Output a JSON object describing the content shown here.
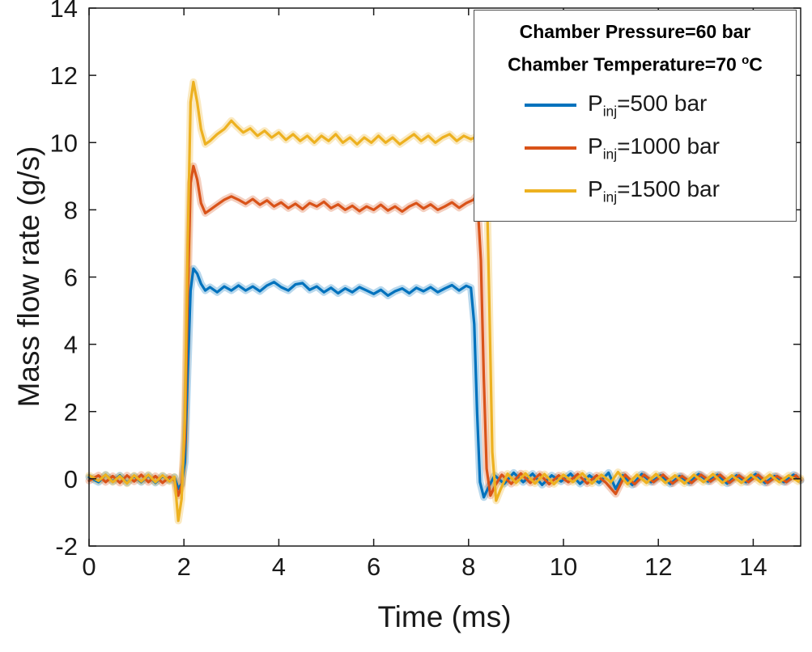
{
  "figure": {
    "xlabel": "Time (ms)",
    "ylabel": "Mass flow rate (g/s)"
  },
  "legend": {
    "header1": "Chamber Pressure=60 bar",
    "header2": {
      "pre": "Chamber Temperature=70 ",
      "sup": "o",
      "post": "C"
    },
    "entries": [
      {
        "pre": "P",
        "sub": "inj",
        "post": "=500 bar",
        "color": "#0072BD"
      },
      {
        "pre": "P",
        "sub": "inj",
        "post": "=1000 bar",
        "color": "#D95319"
      },
      {
        "pre": "P",
        "sub": "inj",
        "post": "=1500 bar",
        "color": "#EDB120"
      }
    ]
  },
  "chart_data": {
    "type": "line",
    "title": "",
    "xlabel": "Time (ms)",
    "ylabel": "Mass flow rate (g/s)",
    "xlim": [
      0,
      15
    ],
    "ylim": [
      -2,
      14
    ],
    "xticks": [
      0,
      2,
      4,
      6,
      8,
      10,
      12,
      14
    ],
    "yticks": [
      -2,
      0,
      2,
      4,
      6,
      8,
      10,
      12,
      14
    ],
    "grid": false,
    "legend_position": "top-right",
    "annotations": [
      "Chamber Pressure=60 bar",
      "Chamber Temperature=70 °C"
    ],
    "series": [
      {
        "name": "P_inj=500 bar",
        "color": "#0072BD",
        "plateau_g_s": 5.7,
        "peak_g_s": 6.25,
        "injection_start_ms": 2.0,
        "injection_end_ms": 8.2,
        "uncertainty_band_halfwidth": 0.18,
        "points": [
          [
            0,
            0.05
          ],
          [
            0.2,
            -0.1
          ],
          [
            0.35,
            0.12
          ],
          [
            0.5,
            -0.08
          ],
          [
            0.65,
            0.1
          ],
          [
            0.8,
            -0.12
          ],
          [
            0.95,
            0.08
          ],
          [
            1.1,
            -0.1
          ],
          [
            1.25,
            0.1
          ],
          [
            1.4,
            -0.12
          ],
          [
            1.55,
            0.08
          ],
          [
            1.7,
            -0.05
          ],
          [
            1.8,
            0.05
          ],
          [
            1.88,
            -0.3
          ],
          [
            1.95,
            -0.15
          ],
          [
            2.02,
            0.5
          ],
          [
            2.08,
            3.2
          ],
          [
            2.14,
            5.6
          ],
          [
            2.2,
            6.25
          ],
          [
            2.28,
            6.1
          ],
          [
            2.36,
            5.8
          ],
          [
            2.45,
            5.6
          ],
          [
            2.55,
            5.7
          ],
          [
            2.7,
            5.55
          ],
          [
            2.85,
            5.72
          ],
          [
            3.0,
            5.6
          ],
          [
            3.15,
            5.75
          ],
          [
            3.3,
            5.6
          ],
          [
            3.45,
            5.72
          ],
          [
            3.6,
            5.58
          ],
          [
            3.75,
            5.75
          ],
          [
            3.9,
            5.85
          ],
          [
            4.05,
            5.7
          ],
          [
            4.2,
            5.6
          ],
          [
            4.35,
            5.78
          ],
          [
            4.5,
            5.82
          ],
          [
            4.65,
            5.62
          ],
          [
            4.8,
            5.72
          ],
          [
            4.95,
            5.55
          ],
          [
            5.1,
            5.68
          ],
          [
            5.25,
            5.52
          ],
          [
            5.4,
            5.66
          ],
          [
            5.55,
            5.55
          ],
          [
            5.7,
            5.7
          ],
          [
            5.85,
            5.6
          ],
          [
            6.0,
            5.5
          ],
          [
            6.15,
            5.62
          ],
          [
            6.3,
            5.45
          ],
          [
            6.45,
            5.58
          ],
          [
            6.6,
            5.66
          ],
          [
            6.75,
            5.52
          ],
          [
            6.9,
            5.68
          ],
          [
            7.05,
            5.58
          ],
          [
            7.2,
            5.7
          ],
          [
            7.35,
            5.55
          ],
          [
            7.5,
            5.66
          ],
          [
            7.65,
            5.76
          ],
          [
            7.8,
            5.6
          ],
          [
            7.95,
            5.74
          ],
          [
            8.05,
            5.68
          ],
          [
            8.12,
            4.6
          ],
          [
            8.18,
            2.0
          ],
          [
            8.24,
            -0.1
          ],
          [
            8.32,
            -0.55
          ],
          [
            8.42,
            -0.25
          ],
          [
            8.55,
            0.1
          ],
          [
            8.75,
            -0.15
          ],
          [
            8.95,
            0.18
          ],
          [
            9.15,
            -0.1
          ],
          [
            9.35,
            0.15
          ],
          [
            9.55,
            -0.18
          ],
          [
            9.75,
            0.1
          ],
          [
            9.95,
            -0.08
          ],
          [
            10.15,
            0.15
          ],
          [
            10.35,
            -0.15
          ],
          [
            10.55,
            0.1
          ],
          [
            10.75,
            -0.12
          ],
          [
            10.95,
            0.18
          ],
          [
            11.1,
            -0.3
          ],
          [
            11.25,
            0.1
          ],
          [
            11.45,
            -0.18
          ],
          [
            11.65,
            0.14
          ],
          [
            11.85,
            -0.1
          ],
          [
            12.05,
            0.1
          ],
          [
            12.25,
            -0.15
          ],
          [
            12.45,
            0.08
          ],
          [
            12.65,
            -0.12
          ],
          [
            12.85,
            0.14
          ],
          [
            13.05,
            -0.08
          ],
          [
            13.25,
            0.12
          ],
          [
            13.45,
            -0.14
          ],
          [
            13.65,
            0.1
          ],
          [
            13.85,
            -0.1
          ],
          [
            14.05,
            0.14
          ],
          [
            14.25,
            -0.12
          ],
          [
            14.45,
            0.08
          ],
          [
            14.65,
            -0.1
          ],
          [
            14.85,
            0.12
          ],
          [
            15.0,
            -0.05
          ]
        ]
      },
      {
        "name": "P_inj=1000 bar",
        "color": "#D95319",
        "plateau_g_s": 8.1,
        "peak_g_s": 9.3,
        "injection_start_ms": 2.0,
        "injection_end_ms": 8.3,
        "uncertainty_band_halfwidth": 0.18,
        "points": [
          [
            0,
            -0.06
          ],
          [
            0.2,
            0.1
          ],
          [
            0.35,
            -0.1
          ],
          [
            0.5,
            0.08
          ],
          [
            0.65,
            -0.12
          ],
          [
            0.8,
            0.1
          ],
          [
            0.95,
            -0.08
          ],
          [
            1.1,
            0.12
          ],
          [
            1.25,
            -0.1
          ],
          [
            1.4,
            0.08
          ],
          [
            1.55,
            -0.12
          ],
          [
            1.7,
            0.06
          ],
          [
            1.8,
            -0.05
          ],
          [
            1.88,
            -0.5
          ],
          [
            1.95,
            -0.2
          ],
          [
            2.02,
            1.2
          ],
          [
            2.08,
            5.5
          ],
          [
            2.14,
            8.8
          ],
          [
            2.2,
            9.3
          ],
          [
            2.28,
            8.9
          ],
          [
            2.36,
            8.2
          ],
          [
            2.45,
            7.9
          ],
          [
            2.55,
            8.0
          ],
          [
            2.7,
            8.15
          ],
          [
            2.85,
            8.3
          ],
          [
            3.0,
            8.4
          ],
          [
            3.15,
            8.3
          ],
          [
            3.3,
            8.18
          ],
          [
            3.45,
            8.32
          ],
          [
            3.6,
            8.15
          ],
          [
            3.75,
            8.28
          ],
          [
            3.9,
            8.1
          ],
          [
            4.05,
            8.22
          ],
          [
            4.2,
            8.05
          ],
          [
            4.35,
            8.18
          ],
          [
            4.5,
            8.02
          ],
          [
            4.65,
            8.2
          ],
          [
            4.8,
            8.1
          ],
          [
            4.95,
            8.24
          ],
          [
            5.1,
            8.05
          ],
          [
            5.25,
            8.16
          ],
          [
            5.4,
            8.0
          ],
          [
            5.55,
            8.12
          ],
          [
            5.7,
            7.96
          ],
          [
            5.85,
            8.1
          ],
          [
            6.0,
            8.0
          ],
          [
            6.15,
            8.15
          ],
          [
            6.3,
            7.98
          ],
          [
            6.45,
            8.1
          ],
          [
            6.6,
            7.95
          ],
          [
            6.75,
            8.1
          ],
          [
            6.9,
            8.2
          ],
          [
            7.05,
            8.04
          ],
          [
            7.2,
            8.16
          ],
          [
            7.35,
            8.0
          ],
          [
            7.5,
            8.1
          ],
          [
            7.65,
            8.22
          ],
          [
            7.8,
            8.06
          ],
          [
            7.95,
            8.2
          ],
          [
            8.1,
            8.3
          ],
          [
            8.18,
            8.45
          ],
          [
            8.26,
            6.5
          ],
          [
            8.32,
            3.0
          ],
          [
            8.38,
            0.3
          ],
          [
            8.46,
            -0.5
          ],
          [
            8.56,
            -0.2
          ],
          [
            8.7,
            0.12
          ],
          [
            8.9,
            -0.15
          ],
          [
            9.1,
            0.16
          ],
          [
            9.3,
            -0.12
          ],
          [
            9.5,
            0.14
          ],
          [
            9.7,
            -0.16
          ],
          [
            9.9,
            0.1
          ],
          [
            10.1,
            -0.1
          ],
          [
            10.3,
            0.14
          ],
          [
            10.5,
            -0.14
          ],
          [
            10.7,
            0.1
          ],
          [
            10.9,
            -0.12
          ],
          [
            11.1,
            -0.45
          ],
          [
            11.3,
            0.12
          ],
          [
            11.5,
            -0.16
          ],
          [
            11.7,
            0.12
          ],
          [
            11.9,
            -0.1
          ],
          [
            12.1,
            0.12
          ],
          [
            12.3,
            -0.14
          ],
          [
            12.5,
            0.08
          ],
          [
            12.7,
            -0.12
          ],
          [
            12.9,
            0.12
          ],
          [
            13.1,
            -0.08
          ],
          [
            13.3,
            0.12
          ],
          [
            13.5,
            -0.12
          ],
          [
            13.7,
            0.1
          ],
          [
            13.9,
            -0.1
          ],
          [
            14.1,
            0.12
          ],
          [
            14.3,
            -0.12
          ],
          [
            14.5,
            0.08
          ],
          [
            14.7,
            -0.1
          ],
          [
            14.9,
            0.1
          ],
          [
            15.0,
            -0.04
          ]
        ]
      },
      {
        "name": "P_inj=1500 bar",
        "color": "#EDB120",
        "plateau_g_s": 10.1,
        "peak_g_s": 11.8,
        "injection_start_ms": 2.0,
        "injection_end_ms": 8.45,
        "uncertainty_band_halfwidth": 0.2,
        "points": [
          [
            0,
            0.1
          ],
          [
            0.2,
            -0.06
          ],
          [
            0.35,
            0.12
          ],
          [
            0.5,
            -0.1
          ],
          [
            0.65,
            0.08
          ],
          [
            0.8,
            -0.14
          ],
          [
            0.95,
            0.1
          ],
          [
            1.1,
            -0.08
          ],
          [
            1.25,
            0.12
          ],
          [
            1.4,
            -0.1
          ],
          [
            1.55,
            0.1
          ],
          [
            1.7,
            -0.08
          ],
          [
            1.8,
            0.06
          ],
          [
            1.88,
            -1.25
          ],
          [
            1.95,
            -0.6
          ],
          [
            2.02,
            1.8
          ],
          [
            2.08,
            7.0
          ],
          [
            2.14,
            11.2
          ],
          [
            2.2,
            11.8
          ],
          [
            2.28,
            11.2
          ],
          [
            2.36,
            10.4
          ],
          [
            2.45,
            9.95
          ],
          [
            2.55,
            10.05
          ],
          [
            2.7,
            10.25
          ],
          [
            2.85,
            10.4
          ],
          [
            3.0,
            10.65
          ],
          [
            3.1,
            10.5
          ],
          [
            3.25,
            10.3
          ],
          [
            3.4,
            10.42
          ],
          [
            3.55,
            10.2
          ],
          [
            3.7,
            10.35
          ],
          [
            3.85,
            10.15
          ],
          [
            4.0,
            10.3
          ],
          [
            4.15,
            10.08
          ],
          [
            4.3,
            10.25
          ],
          [
            4.45,
            10.05
          ],
          [
            4.6,
            10.2
          ],
          [
            4.75,
            10.0
          ],
          [
            4.9,
            10.2
          ],
          [
            5.05,
            10.05
          ],
          [
            5.2,
            10.25
          ],
          [
            5.35,
            10.0
          ],
          [
            5.5,
            10.15
          ],
          [
            5.65,
            9.95
          ],
          [
            5.8,
            10.15
          ],
          [
            5.95,
            10.0
          ],
          [
            6.1,
            10.2
          ],
          [
            6.25,
            10.0
          ],
          [
            6.4,
            10.15
          ],
          [
            6.55,
            9.95
          ],
          [
            6.7,
            10.1
          ],
          [
            6.85,
            10.25
          ],
          [
            7.0,
            10.05
          ],
          [
            7.15,
            10.2
          ],
          [
            7.3,
            10.0
          ],
          [
            7.45,
            10.15
          ],
          [
            7.6,
            10.25
          ],
          [
            7.75,
            10.05
          ],
          [
            7.9,
            10.2
          ],
          [
            8.05,
            10.1
          ],
          [
            8.2,
            10.2
          ],
          [
            8.3,
            10.05
          ],
          [
            8.38,
            9.0
          ],
          [
            8.44,
            5.0
          ],
          [
            8.5,
            0.8
          ],
          [
            8.58,
            -0.65
          ],
          [
            8.68,
            -0.3
          ],
          [
            8.82,
            0.15
          ],
          [
            9.0,
            -0.12
          ],
          [
            9.2,
            0.16
          ],
          [
            9.4,
            -0.14
          ],
          [
            9.6,
            0.14
          ],
          [
            9.8,
            -0.16
          ],
          [
            10.0,
            0.12
          ],
          [
            10.2,
            -0.1
          ],
          [
            10.4,
            0.16
          ],
          [
            10.6,
            -0.14
          ],
          [
            10.8,
            0.12
          ],
          [
            11.0,
            -0.1
          ],
          [
            11.15,
            0.2
          ],
          [
            11.35,
            -0.16
          ],
          [
            11.55,
            0.12
          ],
          [
            11.75,
            -0.12
          ],
          [
            11.95,
            0.14
          ],
          [
            12.15,
            -0.12
          ],
          [
            12.35,
            0.1
          ],
          [
            12.55,
            -0.14
          ],
          [
            12.75,
            0.12
          ],
          [
            12.95,
            -0.1
          ],
          [
            13.15,
            0.14
          ],
          [
            13.35,
            -0.12
          ],
          [
            13.55,
            0.1
          ],
          [
            13.75,
            -0.12
          ],
          [
            13.95,
            0.12
          ],
          [
            14.15,
            -0.1
          ],
          [
            14.35,
            0.12
          ],
          [
            14.55,
            -0.1
          ],
          [
            14.75,
            0.1
          ],
          [
            14.95,
            -0.08
          ],
          [
            15.0,
            0.02
          ]
        ]
      }
    ]
  }
}
